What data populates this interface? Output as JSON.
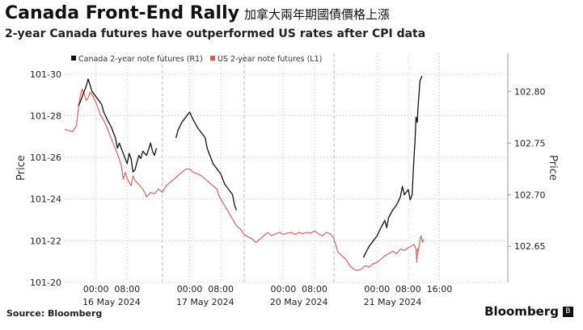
{
  "header": {
    "title": "Canada Front-End Rally",
    "title_cn": "加拿大兩年期國債價格上漲",
    "subtitle": "2-year Canada futures have outperformed US rates after CPI data"
  },
  "footer": {
    "source": "Source: Bloomberg",
    "brand": "Bloomberg",
    "brand_icon": "bloomberg-logo-icon"
  },
  "colors": {
    "canada": "#111111",
    "us": "#e0544f",
    "grid": "#c8c8c8"
  },
  "chart_data": {
    "type": "line",
    "title": "Canada Front-End Rally",
    "ylabel_left": "Price",
    "ylabel_right": "Price",
    "left_axis": {
      "ylim": [
        101.625,
        101.96875
      ],
      "ticks": [
        101.625,
        101.6875,
        101.75,
        101.8125,
        101.875,
        101.9375
      ],
      "tick_labels": [
        "101-20",
        "101-22",
        "101-24",
        "101-26",
        "101-28",
        "101-30"
      ]
    },
    "right_axis": {
      "ylim": [
        102.615,
        102.837
      ],
      "ticks": [
        102.65,
        102.7,
        102.75,
        102.8
      ],
      "tick_labels": [
        "102.65",
        "102.70",
        "102.75",
        "102.80"
      ]
    },
    "xlim": [
      -8,
      105.5
    ],
    "x_ticks": [
      0,
      8,
      24,
      32,
      48,
      56,
      72,
      80,
      88
    ],
    "x_tick_labels": [
      "00:00",
      "08:00",
      "00:00",
      "08:00",
      "00:00",
      "08:00",
      "00:00",
      "08:00",
      "16:00"
    ],
    "date_labels": [
      {
        "x": 4,
        "label": "16 May 2024"
      },
      {
        "x": 28,
        "label": "17 May 2024"
      },
      {
        "x": 52,
        "label": "20 May 2024"
      },
      {
        "x": 76,
        "label": "21 May 2024"
      }
    ],
    "session_breaks": [
      17,
      38,
      61
    ],
    "legend": [
      "Canada 2-year note futures (R1)",
      "US 2-year note futures (L1)"
    ],
    "series": [
      {
        "name": "Canada 2-year note futures (R1)",
        "axis": "right",
        "segments": [
          [
            [
              -4.5,
              102.786
            ],
            [
              -4,
              102.79
            ],
            [
              -3.5,
              102.795
            ],
            [
              -3,
              102.8
            ],
            [
              -2.5,
              102.805
            ],
            [
              -2,
              102.812
            ],
            [
              -1.5,
              102.806
            ],
            [
              -1,
              102.8
            ],
            [
              0,
              102.795
            ],
            [
              1,
              102.79
            ],
            [
              1.5,
              102.787
            ],
            [
              2,
              102.78
            ],
            [
              3,
              102.772
            ],
            [
              4,
              102.765
            ],
            [
              5,
              102.755
            ],
            [
              5.5,
              102.745
            ],
            [
              6,
              102.75
            ],
            [
              7,
              102.74
            ],
            [
              7.5,
              102.735
            ],
            [
              8,
              102.73
            ],
            [
              8.5,
              102.74
            ],
            [
              9,
              102.735
            ],
            [
              9.5,
              102.722
            ],
            [
              10,
              102.724
            ],
            [
              11,
              102.738
            ],
            [
              11.5,
              102.735
            ],
            [
              12,
              102.742
            ],
            [
              13,
              102.738
            ],
            [
              14,
              102.75
            ],
            [
              14.5,
              102.742
            ],
            [
              15,
              102.738
            ],
            [
              15.5,
              102.745
            ]
          ],
          [
            [
              20.5,
              102.755
            ],
            [
              21,
              102.762
            ],
            [
              22,
              102.77
            ],
            [
              23,
              102.775
            ],
            [
              24,
              102.78
            ],
            [
              25,
              102.772
            ],
            [
              26,
              102.765
            ],
            [
              27,
              102.76
            ],
            [
              28,
              102.755
            ],
            [
              28.5,
              102.745
            ],
            [
              29,
              102.74
            ],
            [
              30,
              102.73
            ],
            [
              31,
              102.725
            ],
            [
              32,
              102.72
            ],
            [
              33,
              102.71
            ],
            [
              34,
              102.705
            ],
            [
              35,
              102.7
            ],
            [
              35.5,
              102.69
            ],
            [
              36,
              102.685
            ]
          ],
          [
            [
              68.5,
              102.639
            ],
            [
              69,
              102.643
            ],
            [
              70,
              102.65
            ],
            [
              71,
              102.655
            ],
            [
              72,
              102.66
            ],
            [
              73,
              102.668
            ],
            [
              74,
              102.675
            ],
            [
              74.5,
              102.668
            ],
            [
              75,
              102.678
            ],
            [
              76,
              102.685
            ],
            [
              77,
              102.69
            ],
            [
              78,
              102.698
            ],
            [
              78.5,
              102.708
            ],
            [
              79,
              102.7
            ],
            [
              80,
              102.705
            ],
            [
              80.5,
              102.695
            ],
            [
              81,
              102.7
            ],
            [
              81.5,
              102.738
            ],
            [
              81.7,
              102.75
            ],
            [
              82,
              102.775
            ],
            [
              82.3,
              102.77
            ],
            [
              82.5,
              102.785
            ],
            [
              83,
              102.81
            ],
            [
              83.5,
              102.815
            ]
          ]
        ]
      },
      {
        "name": "US 2-year note futures (L1)",
        "axis": "left",
        "segments": [
          [
            [
              -8,
              101.855
            ],
            [
              -7,
              101.853
            ],
            [
              -6,
              101.851
            ],
            [
              -5,
              101.86
            ],
            [
              -4.5,
              101.885
            ],
            [
              -4,
              101.905
            ],
            [
              -3.5,
              101.915
            ],
            [
              -3,
              101.908
            ],
            [
              -2.5,
              101.898
            ],
            [
              -2,
              101.902
            ],
            [
              -1.5,
              101.91
            ],
            [
              -1,
              101.907
            ],
            [
              0,
              101.895
            ],
            [
              1,
              101.878
            ],
            [
              2,
              101.868
            ],
            [
              3,
              101.855
            ],
            [
              4,
              101.84
            ],
            [
              5,
              101.825
            ],
            [
              6,
              101.81
            ],
            [
              6.5,
              101.8
            ],
            [
              7,
              101.78
            ],
            [
              7.5,
              101.79
            ],
            [
              8,
              101.78
            ],
            [
              8.5,
              101.775
            ],
            [
              9,
              101.77
            ],
            [
              9.5,
              101.785
            ],
            [
              10,
              101.778
            ],
            [
              11,
              101.772
            ],
            [
              12,
              101.765
            ],
            [
              12.5,
              101.76
            ],
            [
              13,
              101.753
            ],
            [
              14,
              101.76
            ],
            [
              15,
              101.758
            ],
            [
              16,
              101.765
            ],
            [
              17,
              101.76
            ],
            [
              18,
              101.77
            ],
            [
              19,
              101.775
            ],
            [
              20,
              101.78
            ],
            [
              21,
              101.785
            ],
            [
              22,
              101.79
            ],
            [
              23,
              101.795
            ],
            [
              24,
              101.795
            ],
            [
              25,
              101.79
            ],
            [
              26,
              101.788
            ],
            [
              27,
              101.785
            ],
            [
              28,
              101.78
            ],
            [
              29,
              101.775
            ],
            [
              30,
              101.77
            ],
            [
              31,
              101.765
            ],
            [
              31.5,
              101.755
            ],
            [
              32,
              101.75
            ],
            [
              33,
              101.74
            ],
            [
              34,
              101.73
            ],
            [
              35,
              101.72
            ],
            [
              35.5,
              101.715
            ],
            [
              36,
              101.71
            ],
            [
              37,
              101.705
            ],
            [
              38,
              101.697
            ],
            [
              39,
              101.693
            ],
            [
              40,
              101.69
            ],
            [
              41,
              101.685
            ],
            [
              42,
              101.69
            ],
            [
              43,
              101.695
            ],
            [
              44,
              101.7
            ],
            [
              45,
              101.695
            ],
            [
              46,
              101.698
            ],
            [
              47,
              101.7
            ],
            [
              48,
              101.697
            ],
            [
              49,
              101.699
            ],
            [
              50,
              101.7
            ],
            [
              51,
              101.697
            ],
            [
              52,
              101.7
            ],
            [
              53,
              101.698
            ],
            [
              54,
              101.7
            ],
            [
              55,
              101.699
            ],
            [
              56,
              101.702
            ],
            [
              57,
              101.698
            ],
            [
              58,
              101.695
            ],
            [
              59,
              101.7
            ],
            [
              60,
              101.698
            ],
            [
              60.5,
              101.695
            ],
            [
              61,
              101.69
            ],
            [
              61.5,
              101.68
            ],
            [
              62,
              101.67
            ],
            [
              63,
              101.665
            ],
            [
              64,
              101.66
            ],
            [
              65,
              101.65
            ],
            [
              66,
              101.645
            ],
            [
              67,
              101.643
            ],
            [
              68,
              101.645
            ],
            [
              69,
              101.65
            ],
            [
              70,
              101.648
            ],
            [
              71,
              101.653
            ],
            [
              72,
              101.655
            ],
            [
              73,
              101.66
            ],
            [
              74,
              101.665
            ],
            [
              75,
              101.668
            ],
            [
              76,
              101.672
            ],
            [
              77,
              101.668
            ],
            [
              78,
              101.675
            ],
            [
              79,
              101.673
            ],
            [
              80,
              101.677
            ],
            [
              81,
              101.68
            ],
            [
              81.5,
              101.682
            ],
            [
              82,
              101.675
            ],
            [
              82.2,
              101.655
            ],
            [
              82.4,
              101.675
            ],
            [
              82.6,
              101.672
            ],
            [
              83,
              101.69
            ],
            [
              83.3,
              101.695
            ],
            [
              83.6,
              101.685
            ],
            [
              84,
              101.69
            ]
          ]
        ]
      }
    ]
  }
}
